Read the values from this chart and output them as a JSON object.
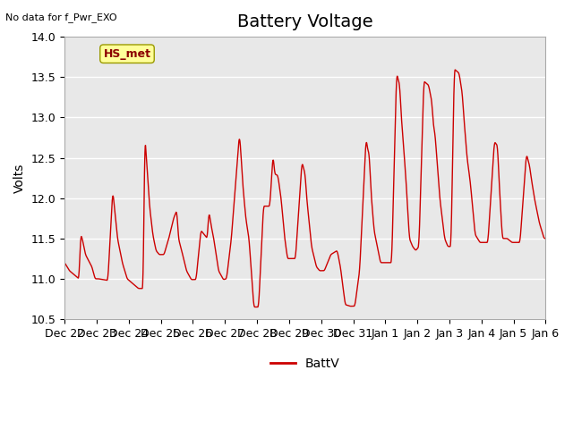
{
  "title": "Battery Voltage",
  "ylabel": "Volts",
  "top_left_text": "No data for f_Pwr_EXO",
  "legend_label": "BattV",
  "legend_label_HS": "HS_met",
  "ylim": [
    10.5,
    14.0
  ],
  "yticks": [
    10.5,
    11.0,
    11.5,
    12.0,
    12.5,
    13.0,
    13.5,
    14.0
  ],
  "line_color": "#cc0000",
  "background_color": "#ffffff",
  "plot_bg_color": "#e8e8e8",
  "grid_color": "#ffffff",
  "hs_box_color": "#ffff99",
  "hs_box_edge": "#999900",
  "x_tick_labels": [
    "Dec 22",
    "Dec 23",
    "Dec 24",
    "Dec 25",
    "Dec 26",
    "Dec 27",
    "Dec 28",
    "Dec 29",
    "Dec 30",
    "Dec 31",
    "Jan 1",
    "Jan 2",
    "Jan 3",
    "Jan 4",
    "Jan 5",
    "Jan 6"
  ],
  "title_fontsize": 14,
  "label_fontsize": 10,
  "tick_fontsize": 9,
  "control_t": [
    0.0,
    0.15,
    0.3,
    0.45,
    0.5,
    0.55,
    0.65,
    0.85,
    0.95,
    1.05,
    1.2,
    1.35,
    1.5,
    1.55,
    1.65,
    1.8,
    1.95,
    2.1,
    2.3,
    2.45,
    2.5,
    2.55,
    2.65,
    2.75,
    2.85,
    2.95,
    3.1,
    3.25,
    3.4,
    3.5,
    3.55,
    3.65,
    3.8,
    3.95,
    4.1,
    4.25,
    4.45,
    4.5,
    4.55,
    4.65,
    4.8,
    4.95,
    5.05,
    5.2,
    5.45,
    5.5,
    5.55,
    5.65,
    5.75,
    5.9,
    6.05,
    6.2,
    6.4,
    6.5,
    6.55,
    6.65,
    6.75,
    6.85,
    6.95,
    7.05,
    7.2,
    7.4,
    7.5,
    7.55,
    7.7,
    7.85,
    7.95,
    8.1,
    8.3,
    8.5,
    8.6,
    8.75,
    8.9,
    9.05,
    9.2,
    9.4,
    9.45,
    9.5,
    9.55,
    9.65,
    9.75,
    9.85,
    9.95,
    10.05,
    10.2,
    10.35,
    10.45,
    10.5,
    10.55,
    10.65,
    10.75,
    10.85,
    10.95,
    11.05,
    11.2,
    11.35,
    11.45,
    11.5,
    11.55,
    11.7,
    11.85,
    11.95,
    12.05,
    12.15,
    12.3,
    12.4,
    12.45,
    12.55,
    12.65,
    12.8,
    12.95,
    13.05,
    13.2,
    13.4,
    13.5,
    13.55,
    13.65,
    13.8,
    13.95,
    14.05,
    14.2,
    14.4,
    14.5,
    14.55,
    14.65,
    14.8,
    14.95,
    15.0
  ],
  "control_v": [
    11.2,
    11.1,
    11.05,
    11.0,
    11.55,
    11.5,
    11.3,
    11.15,
    11.0,
    11.0,
    10.99,
    10.98,
    12.1,
    11.9,
    11.5,
    11.2,
    11.0,
    10.95,
    10.88,
    10.88,
    12.8,
    12.5,
    11.9,
    11.55,
    11.35,
    11.3,
    11.3,
    11.5,
    11.75,
    11.85,
    11.5,
    11.35,
    11.1,
    10.99,
    10.99,
    11.6,
    11.5,
    11.85,
    11.7,
    11.5,
    11.1,
    10.99,
    11.0,
    11.5,
    12.8,
    12.55,
    12.2,
    11.75,
    11.5,
    10.65,
    10.65,
    11.9,
    11.9,
    12.55,
    12.3,
    12.28,
    12.0,
    11.55,
    11.25,
    11.25,
    11.25,
    12.45,
    12.3,
    12.0,
    11.4,
    11.15,
    11.1,
    11.1,
    11.3,
    11.35,
    11.15,
    10.68,
    10.66,
    10.66,
    11.1,
    12.75,
    12.6,
    12.55,
    12.1,
    11.6,
    11.4,
    11.2,
    11.2,
    11.2,
    11.2,
    13.55,
    13.4,
    13.0,
    12.75,
    12.2,
    11.5,
    11.4,
    11.35,
    11.4,
    13.45,
    13.4,
    13.2,
    12.9,
    12.8,
    12.0,
    11.5,
    11.4,
    11.4,
    13.6,
    13.55,
    13.3,
    13.0,
    12.5,
    12.2,
    11.55,
    11.45,
    11.45,
    11.45,
    12.7,
    12.65,
    12.2,
    11.5,
    11.5,
    11.45,
    11.45,
    11.45,
    12.55,
    12.4,
    12.25,
    12.0,
    11.7,
    11.5,
    11.5
  ]
}
